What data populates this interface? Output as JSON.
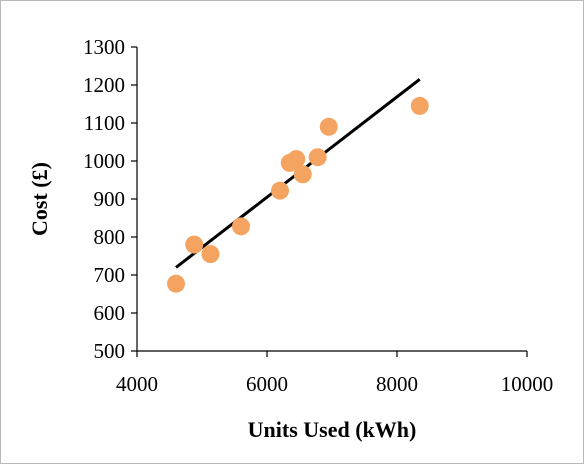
{
  "chart_data": {
    "type": "scatter",
    "title": "",
    "xlabel": "Units Used (kWh)",
    "ylabel": "Cost (£)",
    "xlim": [
      4000,
      10000
    ],
    "ylim": [
      500,
      1300
    ],
    "xticks": [
      4000,
      6000,
      8000,
      10000
    ],
    "yticks": [
      500,
      600,
      700,
      800,
      900,
      1000,
      1100,
      1200,
      1300
    ],
    "grid": false,
    "legend": "none",
    "series": [
      {
        "points": [
          {
            "x": 4600,
            "y": 677
          },
          {
            "x": 4880,
            "y": 780
          },
          {
            "x": 5130,
            "y": 755
          },
          {
            "x": 5600,
            "y": 828
          },
          {
            "x": 6200,
            "y": 922
          },
          {
            "x": 6350,
            "y": 995
          },
          {
            "x": 6450,
            "y": 1005
          },
          {
            "x": 6550,
            "y": 965
          },
          {
            "x": 6780,
            "y": 1010
          },
          {
            "x": 6950,
            "y": 1090
          },
          {
            "x": 8350,
            "y": 1145
          }
        ],
        "color": "#f4a460"
      }
    ],
    "trendline": {
      "x": [
        4600,
        8350
      ],
      "y": [
        720,
        1215
      ],
      "color": "#000000"
    }
  }
}
